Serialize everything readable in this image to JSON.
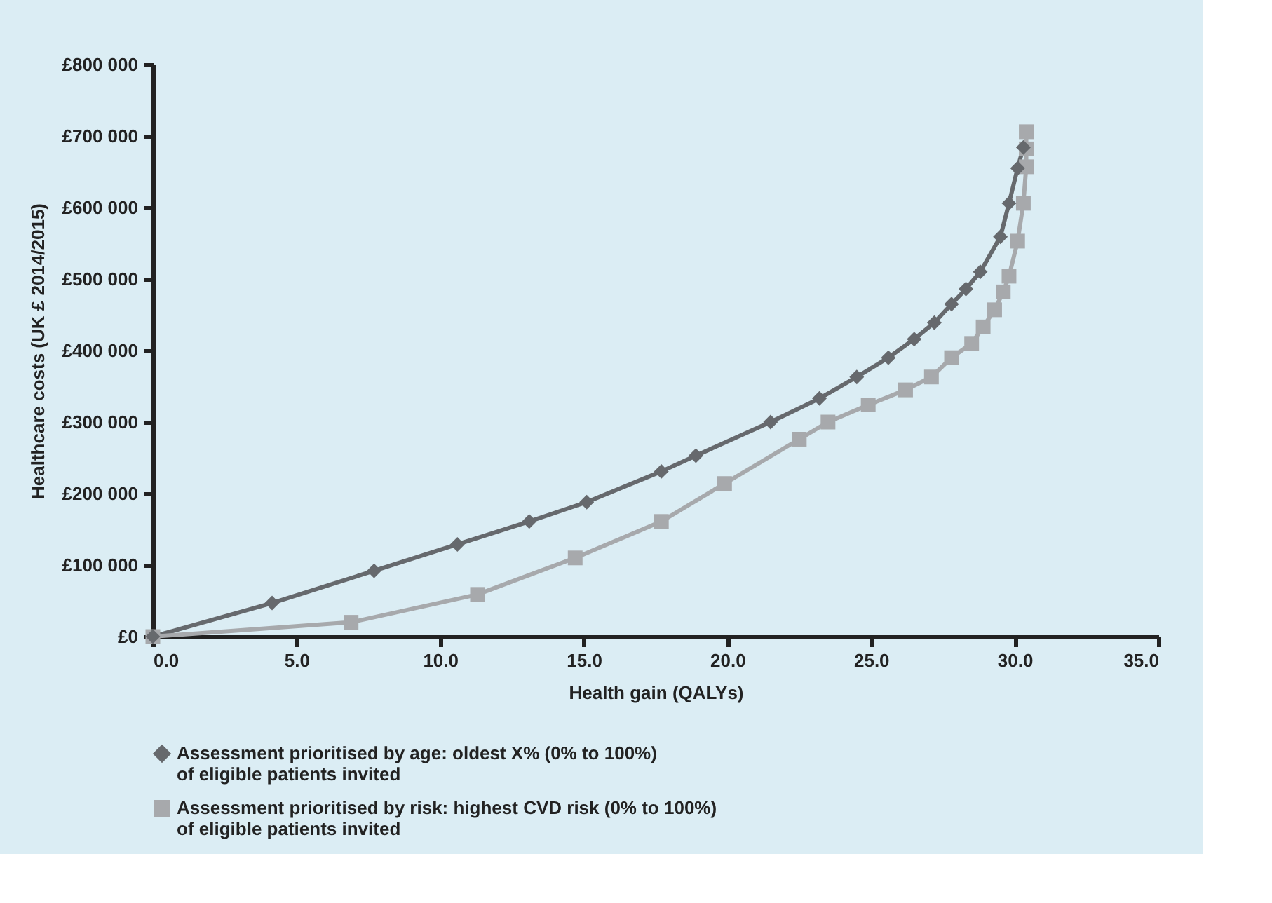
{
  "chart_data": {
    "type": "line",
    "xlabel": "Health gain (QALYs)",
    "ylabel": "Healthcare costs (UK £ 2014/2015)",
    "xlim": [
      0,
      35
    ],
    "xticks": [
      {
        "value": 0,
        "label": "0.0"
      },
      {
        "value": 5,
        "label": "5.0"
      },
      {
        "value": 10,
        "label": "10.0"
      },
      {
        "value": 15,
        "label": "15.0"
      },
      {
        "value": 20,
        "label": "20.0"
      },
      {
        "value": 25,
        "label": "25.0"
      },
      {
        "value": 30,
        "label": "30.0"
      },
      {
        "value": 35,
        "label": "35.0"
      }
    ],
    "ylim": [
      0,
      800000
    ],
    "yticks": [
      {
        "value": 0,
        "label": "£0"
      },
      {
        "value": 100000,
        "label": "£100 000"
      },
      {
        "value": 200000,
        "label": "£200 000"
      },
      {
        "value": 300000,
        "label": "£300 000"
      },
      {
        "value": 400000,
        "label": "£400 000"
      },
      {
        "value": 500000,
        "label": "£500 000"
      },
      {
        "value": 600000,
        "label": "£600 000"
      },
      {
        "value": 700000,
        "label": "£700 000"
      },
      {
        "value": 800000,
        "label": "£800 000"
      }
    ],
    "grid": false,
    "legend": "bottom",
    "line_style": "solid",
    "series": [
      {
        "name": "Assessment prioritised by age: oldest X% (0% to 100%) of eligible patients invited",
        "color": "#66696d",
        "marker": "diamond",
        "x": [
          0,
          4.15,
          7.7,
          10.6,
          13.1,
          15.1,
          17.7,
          18.9,
          21.5,
          23.2,
          24.5,
          25.6,
          26.5,
          27.2,
          27.8,
          28.3,
          28.8,
          29.5,
          29.8,
          30.1,
          30.3
        ],
        "values": [
          0,
          47000,
          92000,
          129000,
          161000,
          188000,
          231000,
          253000,
          300000,
          333000,
          363000,
          390000,
          416000,
          439000,
          465000,
          486000,
          510000,
          559000,
          606000,
          655000,
          684000
        ]
      },
      {
        "name": "Assessment prioritised by risk: highest CVD risk (0% to 100%) of eligible patients invited",
        "color": "#a7a9ac",
        "marker": "square",
        "x": [
          0,
          6.9,
          11.3,
          14.7,
          17.7,
          19.9,
          22.5,
          23.5,
          24.9,
          26.2,
          27.1,
          27.8,
          28.5,
          28.9,
          29.3,
          29.6,
          29.8,
          30.1,
          30.3,
          30.4,
          30.4,
          30.4
        ],
        "values": [
          0,
          20000,
          59000,
          110000,
          161000,
          214000,
          276000,
          300000,
          324000,
          345000,
          363000,
          390000,
          410000,
          433000,
          457000,
          482000,
          504000,
          553000,
          606000,
          657000,
          682000,
          706000
        ]
      }
    ]
  }
}
